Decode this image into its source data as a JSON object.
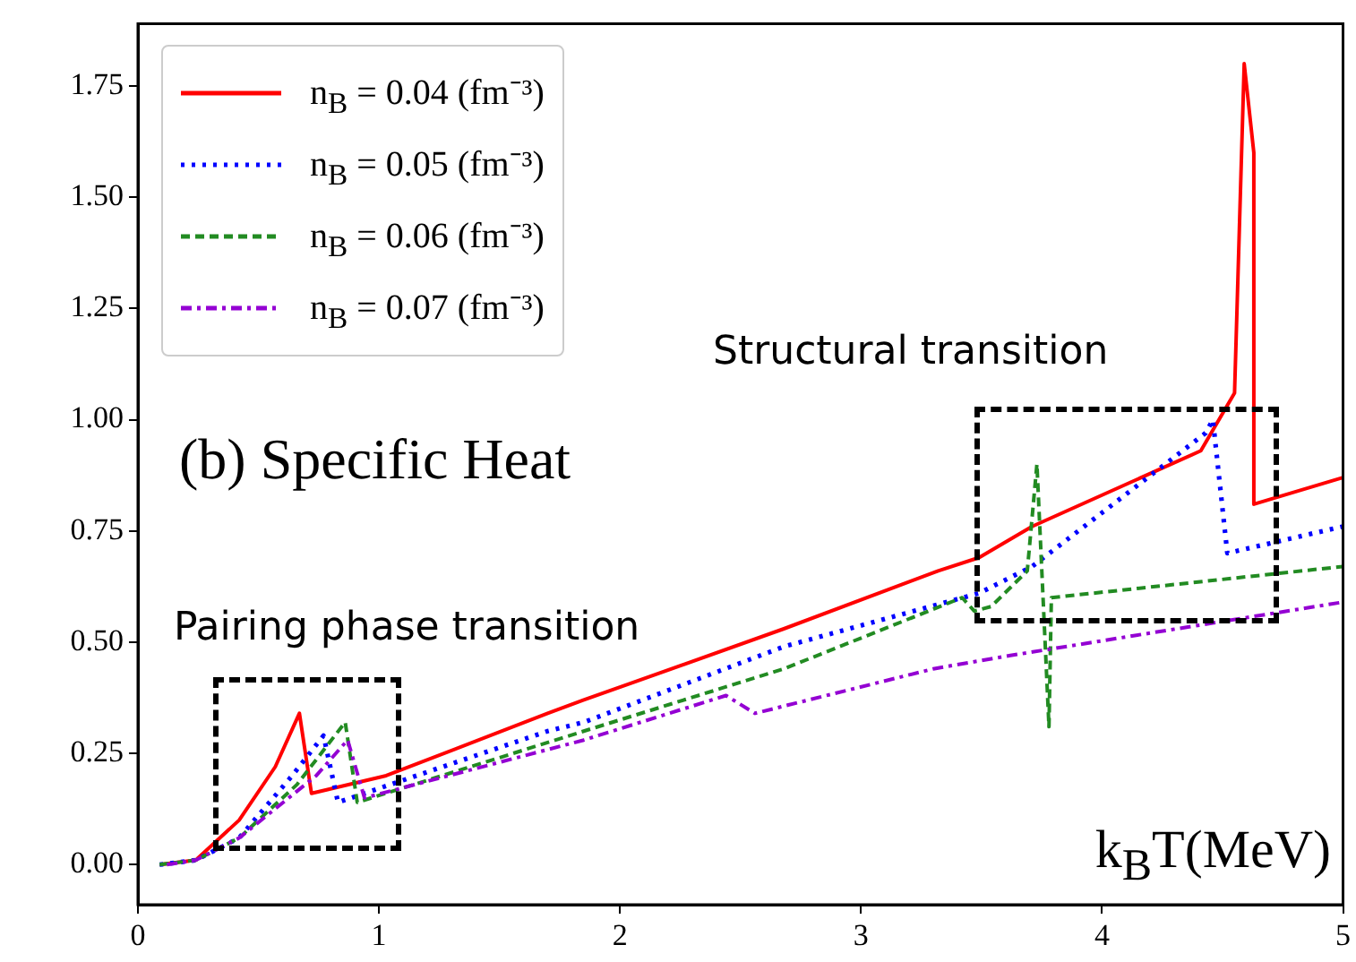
{
  "chart_data": {
    "type": "line",
    "title": "(b) Specific Heat",
    "xlabel": "k$_{B}$T(MeV)",
    "annotations": [
      "Pairing phase transition",
      "Structural transition"
    ],
    "xlim": [
      0,
      5
    ],
    "xticks": [
      0,
      1,
      2,
      3,
      4,
      5
    ],
    "ylim": [
      -0.09,
      1.89
    ],
    "yticks": [
      {
        "value": 0,
        "label": "0.00"
      },
      0.25,
      {
        "value": 0.5,
        "label": "0.50"
      },
      0.75,
      {
        "value": 1,
        "label": "1.00"
      },
      1.25,
      {
        "value": 1.5,
        "label": "1.50"
      },
      1.75
    ],
    "grid": false,
    "legend": "top left",
    "marker": "none",
    "series": [
      {
        "name": "n$_{B}$ = 0.04 (fm⁻³)",
        "color": "#ff0000",
        "line_style": "solid",
        "x": [
          0.09,
          0.24,
          0.42,
          0.57,
          0.67,
          0.72,
          1.03,
          1.7,
          1.85,
          2.68,
          3.32,
          3.49,
          3.71,
          4.41,
          4.55,
          4.59,
          4.63,
          4.63,
          5.0
        ],
        "values": [
          0,
          0.01,
          0.1,
          0.22,
          0.34,
          0.16,
          0.2,
          0.34,
          0.37,
          0.53,
          0.66,
          0.69,
          0.76,
          0.93,
          1.06,
          1.8,
          1.6,
          0.81,
          0.87
        ]
      },
      {
        "name": "n$_{B}$ = 0.05 (fm⁻³)",
        "color": "#0000ff",
        "line_style": "dotted",
        "x": [
          0.09,
          0.24,
          0.42,
          0.64,
          0.77,
          0.83,
          1.7,
          1.85,
          2.68,
          3.49,
          3.71,
          4.43,
          4.46,
          4.52,
          5.0
        ],
        "values": [
          0,
          0.01,
          0.06,
          0.2,
          0.29,
          0.14,
          0.3,
          0.32,
          0.49,
          0.61,
          0.67,
          0.97,
          1.0,
          0.7,
          0.76
        ]
      },
      {
        "name": "n$_{B}$ = 0.06 (fm⁻³)",
        "color": "#228b22",
        "line_style": "dashed",
        "x": [
          0.09,
          0.24,
          0.42,
          0.66,
          0.86,
          0.91,
          1.85,
          2.68,
          3.42,
          3.47,
          3.54,
          3.69,
          3.73,
          3.78,
          3.79,
          5.0
        ],
        "values": [
          0,
          0.01,
          0.06,
          0.18,
          0.32,
          0.14,
          0.3,
          0.44,
          0.6,
          0.57,
          0.58,
          0.66,
          0.9,
          0.31,
          0.6,
          0.67
        ]
      },
      {
        "name": "n$_{B}$ = 0.07 (fm⁻³)",
        "color": "#9400d3",
        "line_style": "dashdot",
        "x": [
          0.12,
          0.24,
          0.42,
          0.74,
          0.87,
          0.94,
          1.85,
          2.44,
          2.56,
          3.3,
          3.62,
          5.0
        ],
        "values": [
          0,
          0.01,
          0.06,
          0.2,
          0.28,
          0.15,
          0.28,
          0.38,
          0.34,
          0.44,
          0.47,
          0.59
        ]
      }
    ]
  }
}
